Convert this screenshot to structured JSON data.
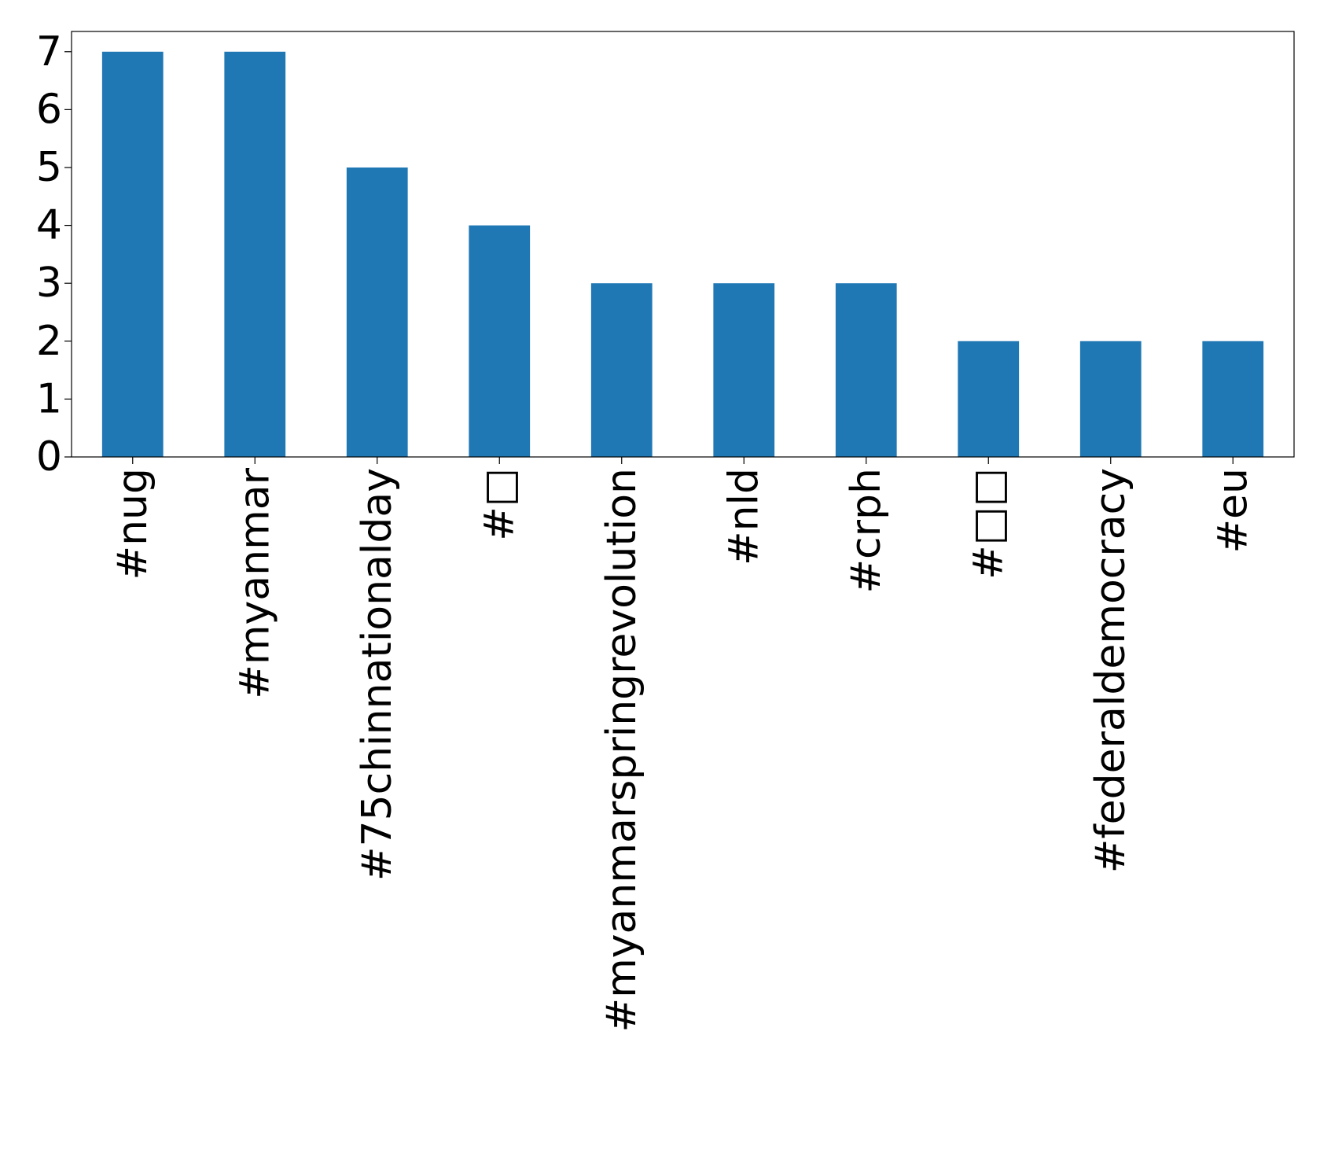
{
  "chart_data": {
    "type": "bar",
    "title": "",
    "xlabel": "",
    "ylabel": "",
    "categories": [
      "#nug",
      "#myanmar",
      "#75chinnationalday",
      "#□",
      "#myanmarspringrevolution",
      "#nld",
      "#crph",
      "#□□",
      "#federaldemocracy",
      "#eu"
    ],
    "values": [
      7,
      7,
      5,
      4,
      3,
      3,
      3,
      2,
      2,
      2
    ],
    "ylim": [
      0,
      7.35
    ],
    "yticks": [
      0,
      1,
      2,
      3,
      4,
      5,
      6,
      7
    ],
    "grid": false,
    "bar_color": "#1f77b4"
  }
}
